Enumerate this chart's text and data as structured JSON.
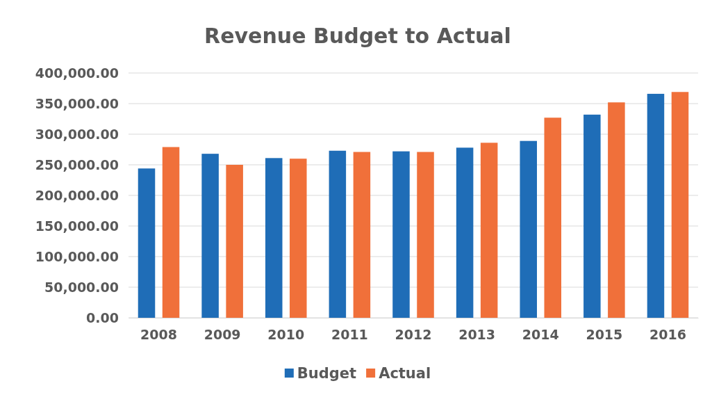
{
  "chart_data": {
    "type": "bar",
    "title": "Revenue Budget to Actual",
    "categories": [
      "2008",
      "2009",
      "2010",
      "2011",
      "2012",
      "2013",
      "2014",
      "2015",
      "2016"
    ],
    "series": [
      {
        "name": "Budget",
        "color": "#1f6db7",
        "values": [
          244000,
          268000,
          261000,
          273000,
          272000,
          278000,
          289000,
          332000,
          366000
        ]
      },
      {
        "name": "Actual",
        "color": "#f0703a",
        "values": [
          279000,
          250000,
          260000,
          271000,
          271000,
          286000,
          327000,
          352000,
          369000
        ]
      }
    ],
    "ylim": [
      0,
      400000
    ],
    "yticks": [
      {
        "value": 0,
        "label": "0.00"
      },
      {
        "value": 50000,
        "label": "50,000.00"
      },
      {
        "value": 100000,
        "label": "100,000.00"
      },
      {
        "value": 150000,
        "label": "150,000.00"
      },
      {
        "value": 200000,
        "label": "200,000.00"
      },
      {
        "value": 250000,
        "label": "250,000.00"
      },
      {
        "value": 300000,
        "label": "300,000.00"
      },
      {
        "value": 350000,
        "label": "350,000.00"
      },
      {
        "value": 400000,
        "label": "400,000.00"
      }
    ],
    "grid": "y",
    "legend": "bottom"
  }
}
